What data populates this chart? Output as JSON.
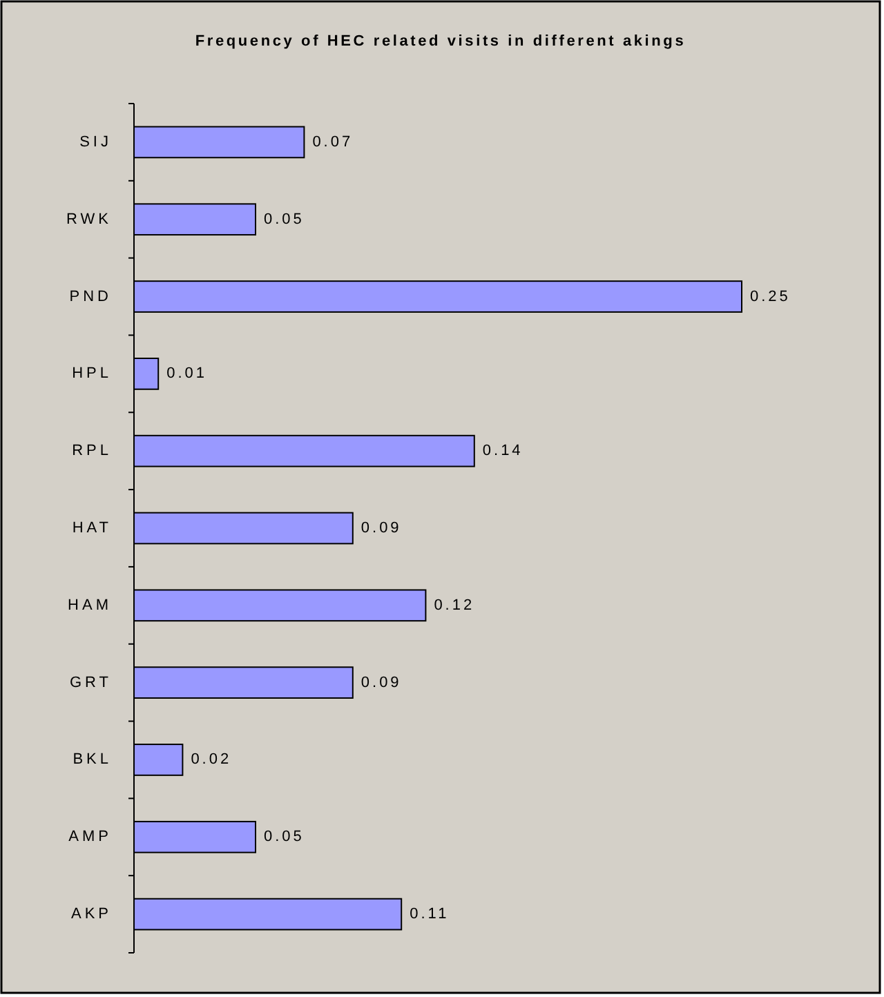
{
  "chart_data": {
    "type": "bar",
    "orientation": "horizontal",
    "title": "Frequency of HEC related visits in different akings",
    "categories": [
      "SIJ",
      "RWK",
      "PND",
      "HPL",
      "RPL",
      "HAT",
      "HAM",
      "GRT",
      "BKL",
      "AMP",
      "AKP"
    ],
    "values": [
      0.07,
      0.05,
      0.25,
      0.01,
      0.14,
      0.09,
      0.12,
      0.09,
      0.02,
      0.05,
      0.11
    ],
    "color": "#9999ff",
    "data_labels": true
  }
}
